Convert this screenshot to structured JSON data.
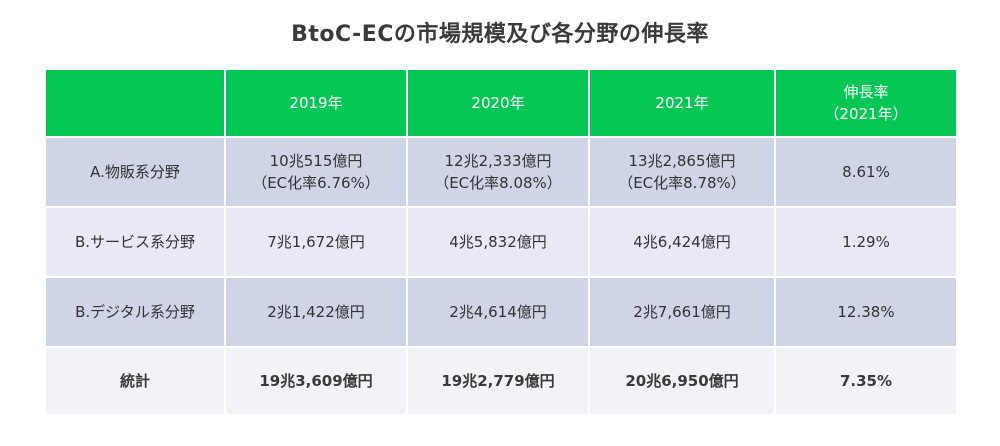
{
  "title": "BtoC-ECの市場規模及び各分野の伸長率",
  "table": {
    "headers": [
      "",
      "2019年",
      "2020年",
      "2021年",
      "伸長率",
      "（2021年）"
    ],
    "rows": [
      {
        "category": "A.物販系分野",
        "y2019": "10兆515億円",
        "y2019_sub": "（EC化率6.76%）",
        "y2020": "12兆2,333億円",
        "y2020_sub": "（EC化率8.08%）",
        "y2021": "13兆2,865億円",
        "y2021_sub": "（EC化率8.78%）",
        "growth": "8.61%"
      },
      {
        "category": "B.サービス系分野",
        "y2019": "7兆1,672億円",
        "y2020": "4兆5,832億円",
        "y2021": "4兆6,424億円",
        "growth": "1.29%"
      },
      {
        "category": "B.デジタル系分野",
        "y2019": "2兆1,422億円",
        "y2020": "2兆4,614億円",
        "y2021": "2兆7,661億円",
        "growth": "12.38%"
      },
      {
        "category": "統計",
        "y2019": "19兆3,609億円",
        "y2020": "19兆2,779億円",
        "y2021": "20兆6,950億円",
        "growth": "7.35%"
      }
    ]
  },
  "colors": {
    "header_green": "#06c755",
    "row_dark": "#cfd4e6",
    "row_light": "#e8e9f4",
    "total_row": "#f2f3f8"
  }
}
